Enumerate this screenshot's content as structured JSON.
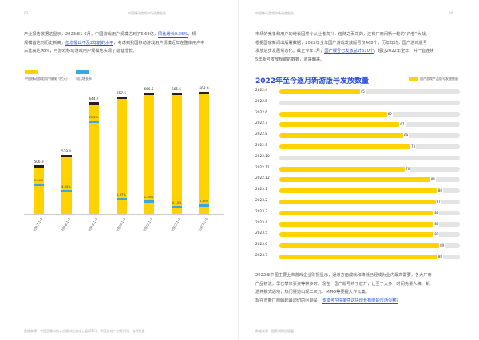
{
  "left": {
    "header": "中国移动游戏市场调查报告",
    "page_num": "03",
    "para_lines": [
      "产业报告数据这显示，2023年1-6月，中国游戏用户规模达到了6.68亿，",
      "",
      "规模首达到历史新高，",
      "占比高达98%，可游戏移动游戏用户规模也实现了稳健增长。"
    ],
    "para_line1_hl": "同比增长0.35%",
    "para_line1_tail": "，规",
    "para_line2_hl": "但增幅出不及2年前的水平",
    "para_line2_tail": "，考虑到我国移动游戏用户规模近年在整体用户中",
    "footer": "数据来源：中国音像与数字出版协会游戏工委(GPC)、中国游戏产业研究院、伽马数据",
    "legend": [
      {
        "label": "中国移动游戏用户规模（亿元）",
        "color": "#ffd200"
      },
      {
        "label": "同比增长率",
        "color": "#38a8e0"
      }
    ]
  },
  "chart_data": {
    "type": "bar",
    "categories": [
      "2017.1-6",
      "2018.1-6",
      "2019.1-6",
      "2020.1-6",
      "2021.1-6",
      "2022.1-6",
      "2023.1-6"
    ],
    "value_labels": [
      "506.9",
      "529.4",
      "644.7",
      "657.6",
      "666.5",
      "665.6",
      "668.0"
    ],
    "values": [
      506.9,
      529.4,
      644.7,
      657.6,
      666.5,
      665.6,
      668.0
    ],
    "growth_labels": [
      "5.64%",
      "4.05%",
      "22.2%",
      "1.97%",
      "1.38%",
      "-0.13%",
      "0.35%"
    ],
    "growth": [
      5.64,
      4.05,
      22.2,
      1.97,
      1.38,
      -0.13,
      0.35
    ],
    "series": [
      {
        "name": "中国移动游戏用户规模（亿元）",
        "values": [
          506.9,
          529.4,
          644.7,
          657.6,
          666.5,
          665.6,
          668.0
        ]
      },
      {
        "name": "同比增长率",
        "values": [
          5.64,
          4.05,
          22.2,
          1.97,
          1.38,
          -0.13,
          0.35
        ]
      }
    ]
  },
  "right": {
    "header": "中国移动游戏市场调查报告",
    "page_num": "04",
    "para_lines": [
      "市场的竞争和用户的增长固然令从业者高兴，但随之而来的，还有厂商间新一轮的“内卷”大战。",
      "根据国家新闻出版署数据，2022年全年国产游戏发放版号仅468个，历年年均，国产游戏版号",
      "",
      "5年新号发放规或的数数，道来朝来。"
    ],
    "para_line3_head": "发放进步发展常态化。截止今年7月，",
    "para_line3_hl": "国产版号已发放总计610个",
    "para_line3_tail": "，超过2022年全年，并一直连续",
    "bottom_lines": [
      "2022年中国主要上市游戏企业财报显示，通道方面成就和降低已经成为业内最高需要，各大厂商",
      "产品初流，早已攀修豪资等林多时。现在，国产版号终于放开，让至于大多一时间先量人稿，新",
      "游并推式通地，热门赛道出现二次元、MMO等要提大作云集。",
      ""
    ],
    "bottom_q_head": "现在市新厂商解起最迫切的问题是，",
    "bottom_q_hl": "该如何在快争夺这块增长有限的市场蛋糕?",
    "footer": "数据来源：国家新闻出版署"
  },
  "right_chart": {
    "type": "bar",
    "title": "2022年至今逐月新游版号发放数量",
    "legend": "国产游戏产品版号发放数量",
    "categories": [
      "2022.4",
      "2022.5",
      "2022.6",
      "2022.7",
      "2022.8",
      "2022.9",
      "2022.10",
      "2022.11",
      "2022.12",
      "2023.1",
      "2023.2",
      "2023.3",
      "2023.4",
      "2023.5",
      "2023.6",
      "2023.7"
    ],
    "values": [
      45,
      0,
      60,
      67,
      69,
      73,
      0,
      70,
      84,
      88,
      87,
      86,
      86,
      86,
      89,
      88
    ],
    "value_labels": [
      "45",
      "",
      "60",
      "67",
      "69",
      "73",
      "",
      "70",
      "84",
      "88",
      "87",
      "86",
      "86",
      "86",
      "89",
      "88"
    ],
    "xmax": 100
  }
}
